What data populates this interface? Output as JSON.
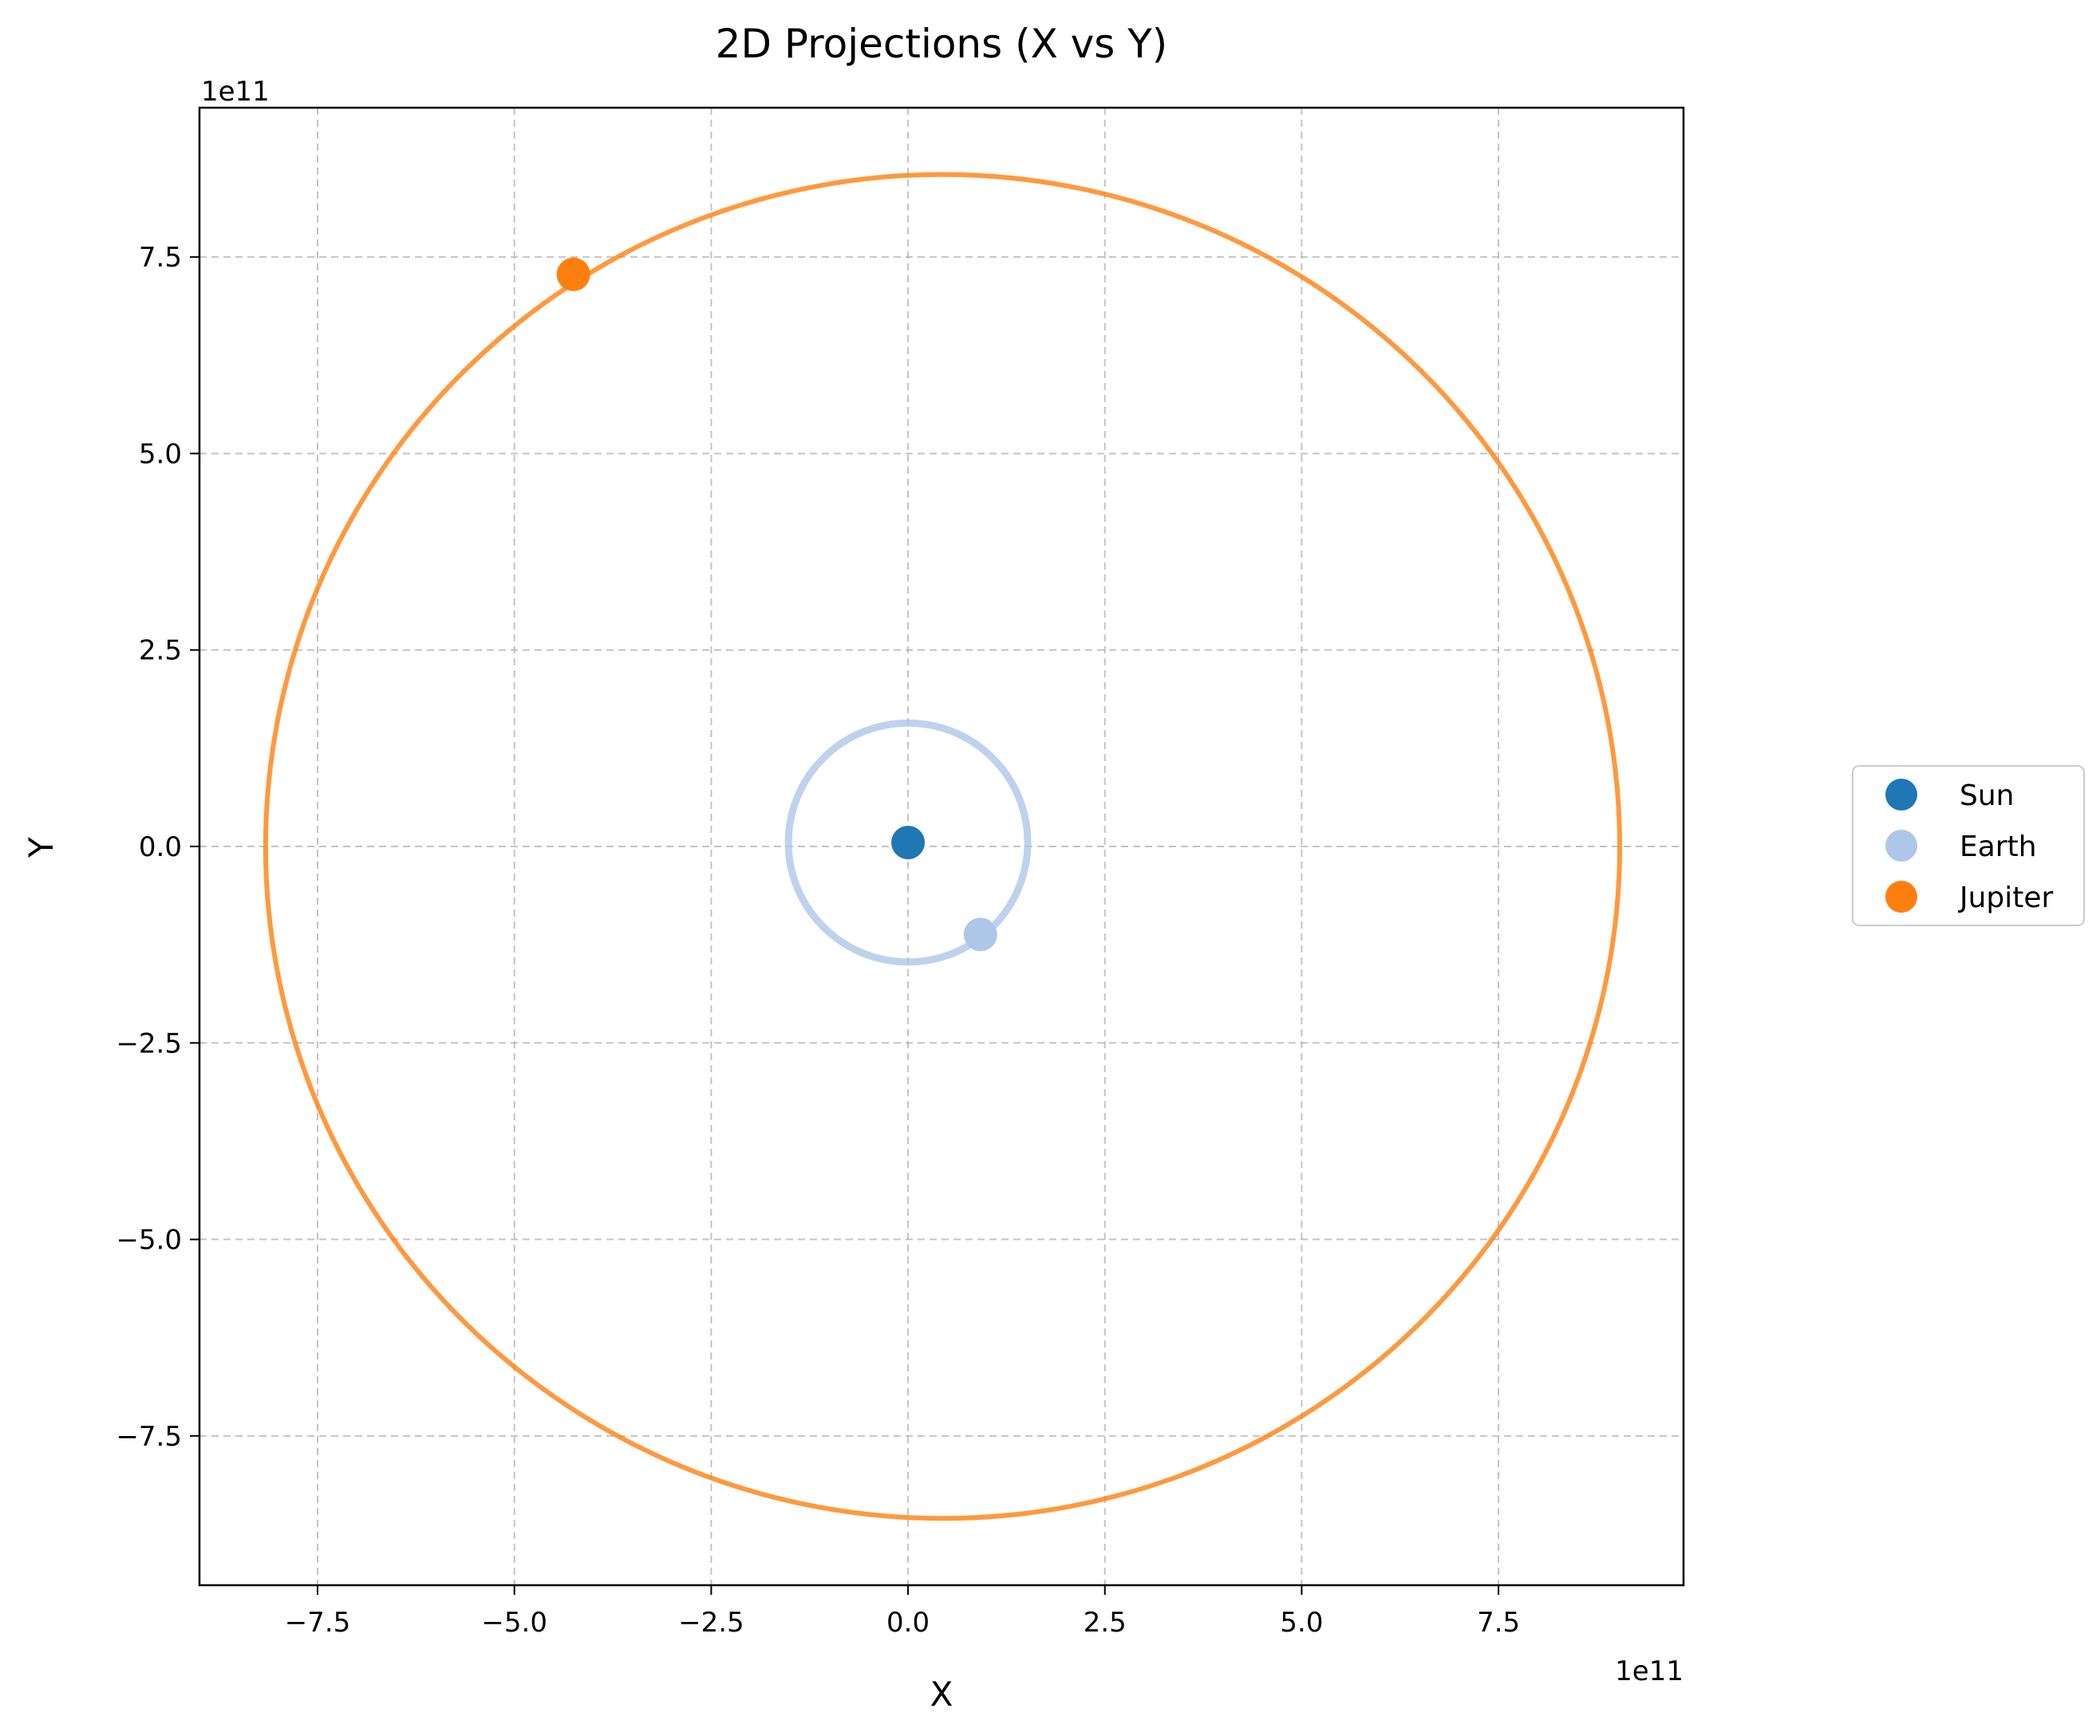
{
  "chart_data": {
    "type": "scatter",
    "title": "2D Projections (X vs Y)",
    "xlabel": "X",
    "ylabel": "Y",
    "x_offset_text": "1e11",
    "y_offset_text": "1e11",
    "xlim": [
      -9.0,
      9.85
    ],
    "ylim": [
      -9.4,
      9.4
    ],
    "x_ticks": [
      -7.5,
      -5.0,
      -2.5,
      0.0,
      2.5,
      5.0,
      7.5
    ],
    "y_ticks": [
      -7.5,
      -5.0,
      -2.5,
      0.0,
      2.5,
      5.0,
      7.5
    ],
    "x_tick_labels": [
      "−7.5",
      "−5.0",
      "−2.5",
      "0.0",
      "2.5",
      "5.0",
      "7.5"
    ],
    "y_tick_labels": [
      "−7.5",
      "−5.0",
      "−2.5",
      "0.0",
      "2.5",
      "5.0",
      "7.5"
    ],
    "grid": true,
    "legend_position": "center-right, outside plot",
    "series": [
      {
        "name": "Sun",
        "color": "#1f77b4",
        "marker": {
          "x": 0.0,
          "y": 0.05
        }
      },
      {
        "name": "Earth",
        "color": "#aec7e8",
        "orbit": {
          "cx": 0.0,
          "cy": 0.05,
          "r": 1.52
        },
        "marker": {
          "x": 0.92,
          "y": -1.12
        }
      },
      {
        "name": "Jupiter",
        "color": "#ff7f0e",
        "orbit": {
          "cx": 0.44,
          "cy": 0.0,
          "rx": 8.6,
          "ry": 8.55
        },
        "marker": {
          "x": -4.25,
          "y": 7.28
        }
      }
    ]
  }
}
